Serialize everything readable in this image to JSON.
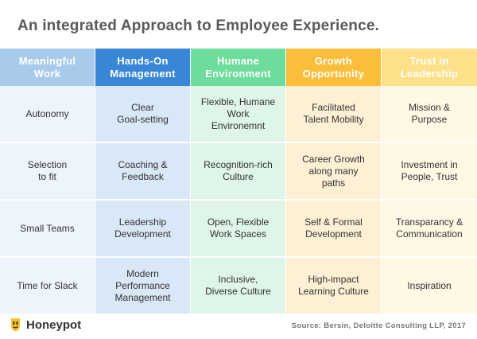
{
  "title": "An integrated Approach to Employee Experience.",
  "colors": {
    "header": [
      "#a9cbeb",
      "#3a86d6",
      "#6edc9c",
      "#fbbe3a",
      "#fde089"
    ],
    "body": [
      "#eef4fb",
      "#d8e8f7",
      "#def5e8",
      "#fef0d4",
      "#fff8e5"
    ]
  },
  "columns": [
    "Meaningful\nWork",
    "Hands-On\nManagement",
    "Humane\nEnvironment",
    "Growth\nOpportunity",
    "Trust in\nLeadership"
  ],
  "rows": [
    [
      "Autonomy",
      "Clear\nGoal-setting",
      "Flexible, Humane\nWork\nEnvironemnt",
      "Facilitated\nTalent Mobility",
      "Mission &\nPurpose"
    ],
    [
      "Selection\nto fit",
      "Coaching &\nFeedback",
      "Recognition-rich\nCulture",
      "Career Growth\nalong many\npaths",
      "Investment in\nPeople, Trust"
    ],
    [
      "Small Teams",
      "Leadership\nDevelopment",
      "Open, Flexible\nWork Spaces",
      "Self & Formal\nDevelopment",
      "Transparancy &\nCommunication"
    ],
    [
      "Time for Slack",
      "Modern\nPerformance\nManagement",
      "Inclusive,\nDiverse Culture",
      "High-impact\nLearning Culture",
      "Inspiration"
    ]
  ],
  "footer": {
    "brand": "Honeypot",
    "source": "Source: Bersin, Deloitte Consulting LLP, 2017",
    "logo_icon": "honeypot-logo-icon"
  }
}
